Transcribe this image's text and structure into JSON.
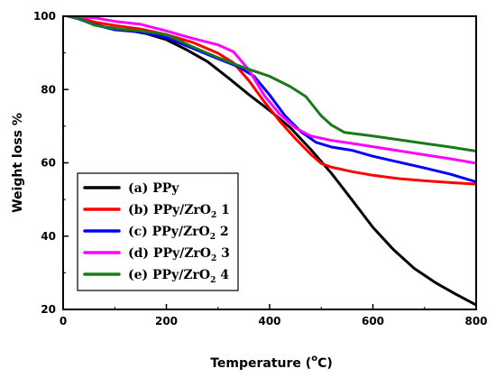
{
  "chart_data": {
    "type": "line",
    "xlabel": "Temperature (°C)",
    "xlabel_parts": {
      "prefix": "Temperature (",
      "degree": "o",
      "unit": "C)"
    },
    "ylabel": "Weight loss %",
    "xlim": [
      0,
      800
    ],
    "ylim": [
      20,
      100
    ],
    "x_ticks": [
      0,
      200,
      400,
      600,
      800
    ],
    "y_ticks": [
      20,
      40,
      60,
      80,
      100
    ],
    "x_ticks_labels": [
      "0",
      "200",
      "400",
      "600",
      "800"
    ],
    "y_ticks_labels": [
      "20",
      "40",
      "60",
      "80",
      "100"
    ],
    "grid": false,
    "legend_placement": "bottom-left",
    "series": [
      {
        "name": "(a) PPy",
        "label_main": "(a) PPy",
        "label_sub": "",
        "label_tail": "",
        "color": "#000000",
        "points": [
          [
            10,
            100
          ],
          [
            30,
            99.4
          ],
          [
            50,
            98.2
          ],
          [
            80,
            97.1
          ],
          [
            120,
            96.3
          ],
          [
            160,
            95.3
          ],
          [
            200,
            93.6
          ],
          [
            240,
            90.8
          ],
          [
            280,
            87.6
          ],
          [
            320,
            83.2
          ],
          [
            360,
            78.6
          ],
          [
            400,
            74.3
          ],
          [
            440,
            69.6
          ],
          [
            480,
            63.6
          ],
          [
            520,
            57.1
          ],
          [
            560,
            49.8
          ],
          [
            600,
            42.4
          ],
          [
            640,
            36.3
          ],
          [
            680,
            31.2
          ],
          [
            720,
            27.4
          ],
          [
            760,
            24.2
          ],
          [
            800,
            21.2
          ]
        ]
      },
      {
        "name": "(b) PPy/ZrO2 1",
        "label_main": "(b) PPy/ZrO",
        "label_sub": "2",
        "label_tail": " 1",
        "color": "#ff0000",
        "points": [
          [
            10,
            100
          ],
          [
            30,
            99.8
          ],
          [
            60,
            98.4
          ],
          [
            100,
            97.5
          ],
          [
            150,
            96.5
          ],
          [
            200,
            95.0
          ],
          [
            250,
            92.9
          ],
          [
            300,
            89.9
          ],
          [
            330,
            87.3
          ],
          [
            360,
            82.4
          ],
          [
            390,
            76.6
          ],
          [
            420,
            71.3
          ],
          [
            450,
            66.6
          ],
          [
            480,
            62.3
          ],
          [
            500,
            59.8
          ],
          [
            520,
            58.8
          ],
          [
            560,
            57.6
          ],
          [
            600,
            56.6
          ],
          [
            650,
            55.7
          ],
          [
            700,
            55.1
          ],
          [
            750,
            54.6
          ],
          [
            800,
            54.2
          ]
        ]
      },
      {
        "name": "(c) PPy/ZrO2 2",
        "label_main": "(c) PPy/ZrO",
        "label_sub": "2",
        "label_tail": " 2",
        "color": "#0000ff",
        "points": [
          [
            10,
            100
          ],
          [
            30,
            99.3
          ],
          [
            60,
            97.7
          ],
          [
            100,
            96.3
          ],
          [
            150,
            95.7
          ],
          [
            200,
            94.2
          ],
          [
            250,
            91.3
          ],
          [
            300,
            88.4
          ],
          [
            340,
            86.2
          ],
          [
            370,
            83.6
          ],
          [
            400,
            78.5
          ],
          [
            430,
            72.8
          ],
          [
            460,
            68.6
          ],
          [
            490,
            65.6
          ],
          [
            520,
            64.3
          ],
          [
            560,
            63.4
          ],
          [
            600,
            61.8
          ],
          [
            650,
            60.2
          ],
          [
            700,
            58.6
          ],
          [
            750,
            56.9
          ],
          [
            800,
            54.8
          ]
        ]
      },
      {
        "name": "(d) PPy/ZrO2 3",
        "label_main": "(d) PPy/ZrO",
        "label_sub": "2",
        "label_tail": " 3",
        "color": "#ff00ff",
        "points": [
          [
            10,
            100
          ],
          [
            30,
            99.8
          ],
          [
            60,
            99.6
          ],
          [
            100,
            98.6
          ],
          [
            150,
            97.8
          ],
          [
            200,
            96.0
          ],
          [
            250,
            94.0
          ],
          [
            300,
            92.2
          ],
          [
            330,
            90.3
          ],
          [
            360,
            85.3
          ],
          [
            390,
            78.3
          ],
          [
            420,
            73.2
          ],
          [
            450,
            69.5
          ],
          [
            480,
            67.3
          ],
          [
            520,
            66.1
          ],
          [
            560,
            65.3
          ],
          [
            600,
            64.4
          ],
          [
            650,
            63.3
          ],
          [
            700,
            62.2
          ],
          [
            750,
            61.1
          ],
          [
            800,
            59.9
          ]
        ]
      },
      {
        "name": "(e) PPy/ZrO2 4",
        "label_main": "(e) PPy/ZrO",
        "label_sub": "2",
        "label_tail": " 4",
        "color": "#1a7a1a",
        "points": [
          [
            10,
            100
          ],
          [
            30,
            99.5
          ],
          [
            60,
            97.6
          ],
          [
            100,
            96.6
          ],
          [
            150,
            96.0
          ],
          [
            200,
            95.0
          ],
          [
            250,
            91.7
          ],
          [
            300,
            88.7
          ],
          [
            350,
            86.0
          ],
          [
            400,
            83.6
          ],
          [
            440,
            80.8
          ],
          [
            470,
            78.1
          ],
          [
            500,
            72.8
          ],
          [
            520,
            70.3
          ],
          [
            545,
            68.3
          ],
          [
            600,
            67.3
          ],
          [
            650,
            66.3
          ],
          [
            700,
            65.3
          ],
          [
            750,
            64.3
          ],
          [
            800,
            63.2
          ]
        ]
      }
    ]
  }
}
